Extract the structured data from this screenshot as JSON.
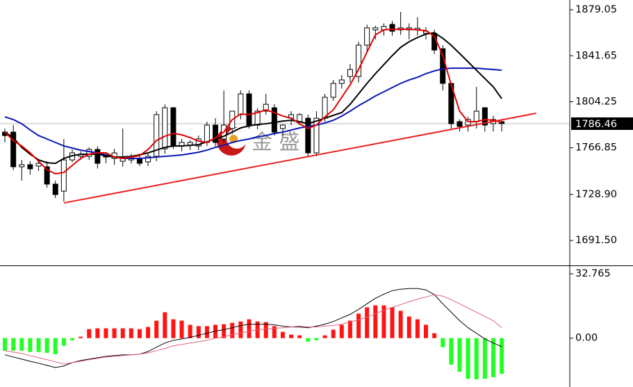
{
  "chart_data": [
    {
      "type": "candlestick",
      "watermark": "金 盛",
      "xlim": [
        -0.58,
        67.08
      ],
      "ylim": [
        1671.2,
        1887.0
      ],
      "yticks": [
        1879.05,
        1841.65,
        1804.25,
        1766.85,
        {
          "value": 1728.9,
          "label": "1728.90"
        },
        {
          "value": 1691.5,
          "label": "1691.50"
        }
      ],
      "last_price": 1786.46,
      "up_color": "#ffffff",
      "down_color": "#000000",
      "ohlc": [
        [
          1779.6,
          1782.5,
          1771.2,
          1776.8
        ],
        [
          1779.6,
          1785.3,
          1748.6,
          1751.4
        ],
        [
          1751.4,
          1757.0,
          1740.1,
          1753.1
        ],
        [
          1753.1,
          1755.9,
          1745.0,
          1749.7
        ],
        [
          1752.0,
          1756.0,
          1748.0,
          1754.2
        ],
        [
          1751.4,
          1755.9,
          1734.4,
          1737.3
        ],
        [
          1737.3,
          1740.1,
          1726.0,
          1728.8
        ],
        [
          1731.6,
          1774.0,
          1723.1,
          1757.0
        ],
        [
          1757.0,
          1765.5,
          1755.0,
          1762.7
        ],
        [
          1760.0,
          1764.0,
          1757.0,
          1761.6
        ],
        [
          1759.9,
          1767.2,
          1757.0,
          1765.5
        ],
        [
          1765.5,
          1768.0,
          1750.0,
          1754.2
        ],
        [
          1759.3,
          1762.7,
          1754.2,
          1759.9
        ],
        [
          1758.2,
          1766.0,
          1753.0,
          1762.7
        ],
        [
          1755.9,
          1782.5,
          1751.4,
          1758.2
        ],
        [
          1757.0,
          1762.0,
          1754.0,
          1759.3
        ],
        [
          1758.2,
          1762.0,
          1752.0,
          1754.2
        ],
        [
          1755.4,
          1763.0,
          1752.0,
          1759.9
        ],
        [
          1759.9,
          1796.6,
          1755.9,
          1793.8
        ],
        [
          1766.0,
          1802.2,
          1762.0,
          1799.4
        ],
        [
          1799.4,
          1800.0,
          1766.0,
          1768.3
        ],
        [
          1768.3,
          1774.0,
          1764.0,
          1771.2
        ],
        [
          1769.0,
          1773.0,
          1765.0,
          1771.2
        ],
        [
          1768.3,
          1776.8,
          1765.0,
          1774.0
        ],
        [
          1771.2,
          1788.1,
          1768.3,
          1785.3
        ],
        [
          1785.3,
          1790.9,
          1768.0,
          1771.2
        ],
        [
          1774.0,
          1813.5,
          1771.2,
          1785.3
        ],
        [
          1782.5,
          1796.6,
          1778.0,
          1796.6
        ],
        [
          1793.8,
          1813.5,
          1790.0,
          1810.7
        ],
        [
          1810.7,
          1813.5,
          1782.5,
          1785.3
        ],
        [
          1785.3,
          1799.0,
          1782.0,
          1796.6
        ],
        [
          1796.6,
          1810.7,
          1793.8,
          1802.2
        ],
        [
          1799.4,
          1802.2,
          1776.8,
          1779.6
        ],
        [
          1782.5,
          1786.0,
          1776.8,
          1785.3
        ],
        [
          1790.9,
          1796.6,
          1785.3,
          1793.8
        ],
        [
          1788.1,
          1795.0,
          1785.3,
          1793.8
        ],
        [
          1790.9,
          1793.8,
          1759.9,
          1762.7
        ],
        [
          1762.7,
          1796.6,
          1759.9,
          1790.9
        ],
        [
          1790.9,
          1810.7,
          1788.1,
          1807.9
        ],
        [
          1807.9,
          1822.0,
          1805.0,
          1819.2
        ],
        [
          1819.2,
          1826.0,
          1815.0,
          1822.0
        ],
        [
          1824.8,
          1835.0,
          1820.0,
          1830.5
        ],
        [
          1824.8,
          1853.0,
          1820.0,
          1850.3
        ],
        [
          1850.3,
          1867.0,
          1845.0,
          1864.4
        ],
        [
          1862.7,
          1866.0,
          1855.0,
          1864.4
        ],
        [
          1862.7,
          1868.0,
          1858.0,
          1865.5
        ],
        [
          1867.2,
          1870.0,
          1858.0,
          1861.6
        ],
        [
          1862.7,
          1877.4,
          1858.7,
          1864.4
        ],
        [
          1862.7,
          1868.0,
          1855.0,
          1864.4
        ],
        [
          1863.0,
          1873.0,
          1858.0,
          1864.0
        ],
        [
          1859.9,
          1865.0,
          1855.0,
          1861.6
        ],
        [
          1859.9,
          1863.0,
          1843.0,
          1846.3
        ],
        [
          1847.4,
          1850.3,
          1813.5,
          1819.2
        ],
        [
          1819.2,
          1820.0,
          1782.0,
          1786.4
        ],
        [
          1788.1,
          1790.0,
          1780.0,
          1784.2
        ],
        [
          1785.3,
          1792.0,
          1780.0,
          1789.8
        ],
        [
          1788.1,
          1816.4,
          1782.5,
          1796.6
        ],
        [
          1799.4,
          1800.0,
          1780.0,
          1785.3
        ],
        [
          1786.4,
          1793.0,
          1780.0,
          1789.8
        ],
        [
          1788.1,
          1790.0,
          1780.0,
          1786.5
        ]
      ],
      "series": [
        {
          "color": "#0a14b4",
          "values": [
            1792.0,
            1789.8,
            1786.4,
            1781.3,
            1776.8,
            1774.0,
            1771.2,
            1768.3,
            1766.6,
            1764.9,
            1763.8,
            1762.7,
            1761.0,
            1759.3,
            1758.2,
            1758.2,
            1758.2,
            1758.7,
            1759.3,
            1759.9,
            1760.4,
            1761.0,
            1762.1,
            1763.2,
            1764.9,
            1767.2,
            1768.9,
            1771.2,
            1772.8,
            1774.0,
            1775.7,
            1776.8,
            1778.5,
            1779.6,
            1781.3,
            1783.0,
            1784.2,
            1785.3,
            1787.0,
            1789.2,
            1792.6,
            1796.6,
            1801.1,
            1805.0,
            1809.0,
            1812.4,
            1815.8,
            1819.2,
            1822.0,
            1824.2,
            1827.1,
            1829.3,
            1831.0,
            1831.6,
            1831.6,
            1831.6,
            1831.6,
            1831.0,
            1830.5,
            1829.9
          ]
        },
        {
          "color": "#000000",
          "values": [
            1779.6,
            1775.1,
            1767.2,
            1761.6,
            1757.0,
            1754.7,
            1754.2,
            1758.2,
            1760.4,
            1761.6,
            1761.6,
            1761.6,
            1760.4,
            1759.3,
            1759.3,
            1759.9,
            1761.0,
            1762.7,
            1764.9,
            1767.2,
            1768.3,
            1768.3,
            1768.9,
            1769.4,
            1771.7,
            1774.0,
            1776.2,
            1779.6,
            1783.0,
            1784.7,
            1785.8,
            1786.4,
            1787.5,
            1788.6,
            1789.2,
            1788.1,
            1786.4,
            1788.6,
            1790.9,
            1793.2,
            1795.4,
            1802.2,
            1810.7,
            1819.2,
            1827.1,
            1834.4,
            1841.8,
            1848.5,
            1853.1,
            1856.5,
            1859.3,
            1860.4,
            1855.9,
            1850.2,
            1843.5,
            1836.7,
            1829.9,
            1823.1,
            1816.4,
            1806.7
          ]
        },
        {
          "color": "#e00000",
          "values": [
            1779.6,
            1772.8,
            1768.3,
            1762.7,
            1755.9,
            1749.1,
            1745.7,
            1746.8,
            1752.5,
            1758.2,
            1761.6,
            1762.7,
            1762.7,
            1759.3,
            1758.2,
            1759.3,
            1760.4,
            1765.5,
            1772.8,
            1776.2,
            1778.5,
            1777.4,
            1775.1,
            1772.3,
            1771.2,
            1775.1,
            1779.6,
            1789.8,
            1794.3,
            1793.8,
            1795.4,
            1797.7,
            1795.4,
            1792.6,
            1790.9,
            1786.4,
            1782.5,
            1785.3,
            1792.0,
            1797.7,
            1807.9,
            1818.0,
            1830.5,
            1844.6,
            1858.7,
            1862.7,
            1863.2,
            1863.2,
            1863.2,
            1862.7,
            1862.1,
            1857.6,
            1841.8,
            1818.0,
            1796.6,
            1788.1,
            1788.1,
            1789.8,
            1789.2,
            1787.5
          ]
        }
      ],
      "trendline": {
        "color": "#e82020",
        "x": [
          7.01,
          63.1
        ],
        "values": [
          1722.0,
          1794.9
        ]
      }
    },
    {
      "type": "macd",
      "xlim": [
        -0.58,
        67.08
      ],
      "ylim": [
        -24.9,
        36.7
      ],
      "yticks": [
        32.765,
        {
          "value": 0,
          "label": "0.00"
        }
      ],
      "up_color": "#ff1414",
      "down_color": "#22ff22",
      "histogram": [
        -6.4,
        -6.4,
        -6.4,
        -7.1,
        -7.1,
        -7.5,
        -8.2,
        -3.9,
        -1.1,
        0.7,
        4.6,
        5.0,
        5.0,
        5.0,
        5.0,
        5.0,
        4.6,
        5.7,
        8.9,
        13.2,
        9.6,
        8.9,
        6.8,
        6.1,
        6.1,
        6.8,
        7.1,
        7.8,
        8.5,
        9.6,
        8.5,
        8.2,
        6.1,
        3.2,
        1.8,
        1.4,
        -1.8,
        -1.1,
        1.4,
        4.3,
        6.8,
        8.9,
        12.5,
        15.7,
        16.7,
        16.7,
        15.7,
        13.9,
        11.0,
        9.6,
        6.8,
        2.5,
        -4.6,
        -13.5,
        -17.1,
        -20.7,
        -21.0,
        -20.7,
        -19.9,
        -18.2
      ],
      "series": [
        {
          "color": "#000000",
          "values": [
            -8.5,
            -9.6,
            -10.7,
            -11.8,
            -12.8,
            -13.9,
            -15.0,
            -14.2,
            -12.5,
            -11.4,
            -10.7,
            -10.0,
            -9.3,
            -8.9,
            -8.5,
            -8.5,
            -8.2,
            -6.8,
            -4.6,
            -2.5,
            -1.1,
            -0.4,
            0.4,
            1.4,
            2.5,
            3.6,
            4.3,
            5.3,
            6.4,
            7.1,
            7.1,
            7.1,
            6.8,
            6.1,
            5.7,
            5.7,
            5.3,
            6.1,
            7.1,
            8.5,
            10.3,
            12.1,
            14.6,
            17.5,
            20.3,
            22.4,
            24.2,
            24.9,
            25.3,
            25.3,
            24.6,
            22.1,
            17.5,
            13.2,
            8.9,
            5.3,
            2.5,
            -0.4,
            -2.5,
            -4.3
          ]
        },
        {
          "color": "#e0607a",
          "values": [
            -6.4,
            -7.1,
            -7.8,
            -8.9,
            -10.0,
            -11.0,
            -12.1,
            -13.2,
            -12.5,
            -11.8,
            -11.0,
            -10.3,
            -9.6,
            -9.3,
            -8.9,
            -8.5,
            -8.2,
            -7.5,
            -6.4,
            -5.3,
            -3.9,
            -3.2,
            -2.5,
            -1.8,
            -1.1,
            0,
            0.7,
            1.8,
            2.5,
            3.6,
            4.3,
            4.6,
            5.0,
            5.3,
            5.7,
            6.1,
            5.7,
            5.7,
            6.1,
            6.4,
            7.1,
            8.2,
            9.3,
            10.7,
            12.5,
            14.2,
            15.7,
            17.1,
            18.5,
            19.9,
            21.0,
            22.1,
            21.4,
            19.6,
            17.5,
            15.3,
            13.2,
            11.0,
            8.9,
            5.3
          ]
        }
      ]
    }
  ]
}
